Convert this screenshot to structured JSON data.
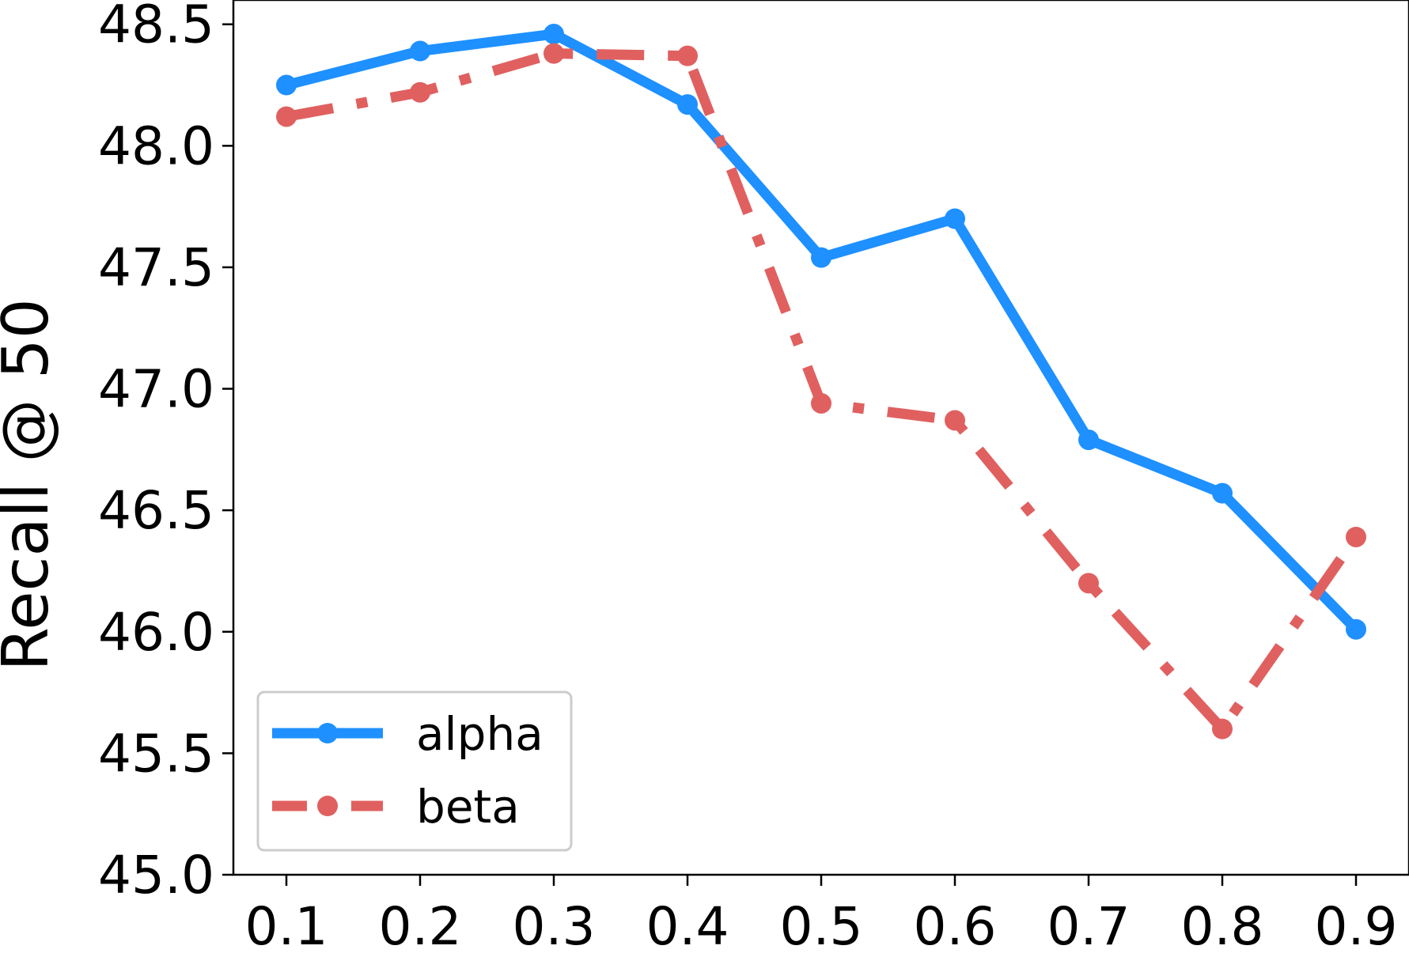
{
  "chart_data": {
    "type": "line",
    "title": "",
    "xlabel": "",
    "ylabel": "Recall @ 50",
    "x": [
      0.1,
      0.2,
      0.3,
      0.4,
      0.5,
      0.6,
      0.7,
      0.8,
      0.9
    ],
    "x_tick_labels": [
      "0.1",
      "0.2",
      "0.3",
      "0.4",
      "0.5",
      "0.6",
      "0.7",
      "0.8",
      "0.9"
    ],
    "ylim": [
      45.0,
      48.6
    ],
    "y_ticks": [
      45.0,
      45.5,
      46.0,
      46.5,
      47.0,
      47.5,
      48.0,
      48.5
    ],
    "y_tick_labels": [
      "45.0",
      "45.5",
      "46.0",
      "46.5",
      "47.0",
      "47.5",
      "48.0",
      "48.5"
    ],
    "grid": false,
    "legend_position": "lower-left",
    "series": [
      {
        "name": "alpha",
        "color": "#1E90FF",
        "line_style": "solid",
        "marker": "circle",
        "values": [
          48.25,
          48.39,
          48.46,
          48.17,
          47.54,
          47.7,
          46.79,
          46.57,
          46.01
        ]
      },
      {
        "name": "beta",
        "color": "#E06060",
        "line_style": "dashdot",
        "marker": "circle",
        "values": [
          48.12,
          48.22,
          48.38,
          48.37,
          46.94,
          46.87,
          46.2,
          45.6,
          46.39
        ]
      }
    ]
  }
}
